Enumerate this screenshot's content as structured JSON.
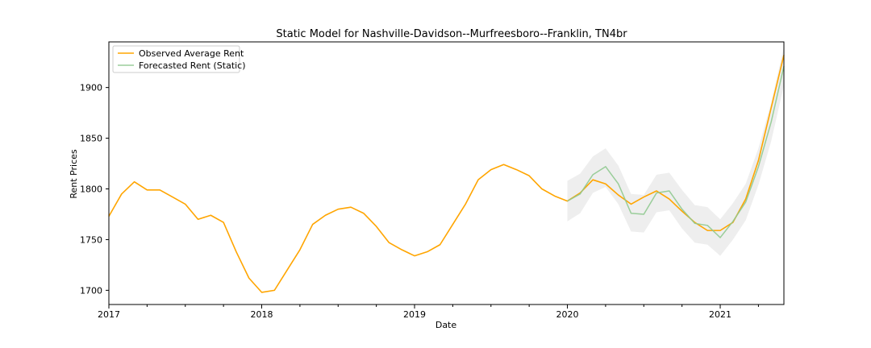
{
  "chart_data": {
    "type": "line",
    "title": "Static Model for Nashville-Davidson--Murfreesboro--Franklin, TN4br",
    "xlabel": "Date",
    "ylabel": "Rent Prices",
    "xlim": [
      "2017-01",
      "2021-06"
    ],
    "ylim": [
      1686,
      1945
    ],
    "x_ticks": [
      "2017",
      "2018",
      "2019",
      "2020",
      "2021"
    ],
    "y_ticks": [
      1700,
      1750,
      1800,
      1850,
      1900
    ],
    "grid": false,
    "legend_position": "upper left",
    "series": [
      {
        "name": "Observed Average Rent",
        "color": "#ffa500",
        "x": [
          "2017-01",
          "2017-02",
          "2017-03",
          "2017-04",
          "2017-05",
          "2017-06",
          "2017-07",
          "2017-08",
          "2017-09",
          "2017-10",
          "2017-11",
          "2017-12",
          "2018-01",
          "2018-02",
          "2018-03",
          "2018-04",
          "2018-05",
          "2018-06",
          "2018-07",
          "2018-08",
          "2018-09",
          "2018-10",
          "2018-11",
          "2018-12",
          "2019-01",
          "2019-02",
          "2019-03",
          "2019-04",
          "2019-05",
          "2019-06",
          "2019-07",
          "2019-08",
          "2019-09",
          "2019-10",
          "2019-11",
          "2019-12",
          "2020-01",
          "2020-02",
          "2020-03",
          "2020-04",
          "2020-05",
          "2020-06",
          "2020-07",
          "2020-08",
          "2020-09",
          "2020-10",
          "2020-11",
          "2020-12",
          "2021-01",
          "2021-02",
          "2021-03",
          "2021-04",
          "2021-05",
          "2021-06"
        ],
        "values": [
          1773,
          1795,
          1807,
          1799,
          1799,
          1792,
          1785,
          1770,
          1774,
          1767,
          1738,
          1712,
          1698,
          1700,
          1720,
          1740,
          1765,
          1774,
          1780,
          1782,
          1776,
          1763,
          1747,
          1740,
          1734,
          1738,
          1745,
          1765,
          1785,
          1809,
          1819,
          1824,
          1819,
          1813,
          1800,
          1793,
          1788,
          1796,
          1809,
          1805,
          1794,
          1785,
          1792,
          1798,
          1790,
          1778,
          1767,
          1759,
          1759,
          1767,
          1790,
          1828,
          1880,
          1932
        ]
      },
      {
        "name": "Forecasted Rent (Static)",
        "color": "#8fc98f",
        "x": [
          "2020-01",
          "2020-02",
          "2020-03",
          "2020-04",
          "2020-05",
          "2020-06",
          "2020-07",
          "2020-08",
          "2020-09",
          "2020-10",
          "2020-11",
          "2020-12",
          "2021-01",
          "2021-02",
          "2021-03",
          "2021-04",
          "2021-05",
          "2021-06"
        ],
        "values": [
          1788,
          1795,
          1814,
          1822,
          1805,
          1776,
          1775,
          1796,
          1798,
          1780,
          1766,
          1764,
          1752,
          1768,
          1787,
          1822,
          1866,
          1921
        ],
        "lower": [
          1768,
          1776,
          1796,
          1802,
          1785,
          1758,
          1757,
          1777,
          1779,
          1761,
          1747,
          1745,
          1734,
          1750,
          1769,
          1804,
          1847,
          1902
        ],
        "upper": [
          1808,
          1815,
          1832,
          1840,
          1823,
          1795,
          1794,
          1814,
          1816,
          1799,
          1784,
          1782,
          1770,
          1786,
          1805,
          1840,
          1885,
          1940
        ]
      }
    ]
  }
}
